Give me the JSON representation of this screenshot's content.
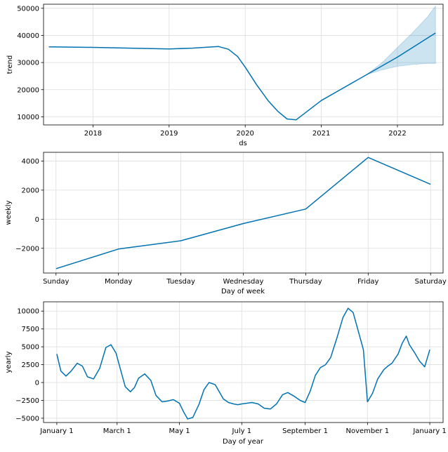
{
  "chart_data": [
    {
      "type": "line",
      "xlabel": "ds",
      "ylabel": "trend",
      "xlim": [
        2017.35,
        2022.6
      ],
      "ylim": [
        7000,
        51500
      ],
      "grid": true,
      "x_ticks": [
        2018,
        2019,
        2020,
        2021,
        2022
      ],
      "x_tick_labels": [
        "2018",
        "2019",
        "2020",
        "2021",
        "2022"
      ],
      "y_ticks": [
        10000,
        20000,
        30000,
        40000,
        50000
      ],
      "y_tick_labels": [
        "10000",
        "20000",
        "30000",
        "40000",
        "50000"
      ],
      "line_color": "#0072b2",
      "band_color": "#0072b2",
      "x": [
        2017.42,
        2018.0,
        2018.5,
        2019.0,
        2019.3,
        2019.65,
        2019.78,
        2019.9,
        2020.0,
        2020.15,
        2020.3,
        2020.43,
        2020.55,
        2020.67,
        2021.0,
        2021.6,
        2022.0,
        2022.5
      ],
      "y": [
        35800,
        35600,
        35300,
        35000,
        35300,
        35900,
        34900,
        32200,
        28300,
        21800,
        16000,
        12000,
        9200,
        8900,
        16000,
        25600,
        32000,
        40900
      ],
      "band": {
        "x": [
          2021.6,
          2021.8,
          2022.0,
          2022.2,
          2022.4,
          2022.5
        ],
        "lower": [
          25600,
          27300,
          28600,
          29300,
          29700,
          29700
        ],
        "upper": [
          25600,
          30000,
          35500,
          41000,
          47000,
          50800
        ]
      }
    },
    {
      "type": "line",
      "xlabel": "Day of week",
      "ylabel": "weekly",
      "categories": [
        "Sunday",
        "Monday",
        "Tuesday",
        "Wednesday",
        "Thursday",
        "Friday",
        "Saturday"
      ],
      "values": [
        -3400,
        -2050,
        -1480,
        -300,
        700,
        4250,
        2400
      ],
      "ylim": [
        -3700,
        4600
      ],
      "grid": true,
      "y_ticks": [
        -2000,
        0,
        2000,
        4000
      ],
      "y_tick_labels": [
        "−2000",
        "0",
        "2000",
        "4000"
      ],
      "line_color": "#0072b2"
    },
    {
      "type": "line",
      "xlabel": "Day of year",
      "ylabel": "yearly",
      "xlim": [
        -13,
        378
      ],
      "ylim": [
        -5600,
        11300
      ],
      "grid": true,
      "x_ticks": [
        0,
        59,
        120,
        181,
        243,
        304,
        365
      ],
      "x_tick_labels": [
        "January 1",
        "March 1",
        "May 1",
        "July 1",
        "September 1",
        "November 1",
        "January 1"
      ],
      "y_ticks": [
        -5000,
        -2500,
        0,
        2500,
        5000,
        7500,
        10000
      ],
      "y_tick_labels": [
        "−5000",
        "−2500",
        "0",
        "2500",
        "5000",
        "7500",
        "10000"
      ],
      "line_color": "#0072b2",
      "x": [
        0,
        4,
        9,
        14,
        20,
        25,
        30,
        36,
        42,
        48,
        53,
        58,
        62,
        67,
        72,
        76,
        80,
        86,
        92,
        97,
        103,
        108,
        114,
        120,
        124,
        128,
        133,
        139,
        144,
        149,
        155,
        163,
        168,
        173,
        177,
        181,
        186,
        191,
        197,
        203,
        209,
        215,
        221,
        226,
        232,
        238,
        243,
        248,
        253,
        258,
        263,
        268,
        274,
        280,
        285,
        290,
        295,
        300,
        304,
        309,
        314,
        320,
        324,
        328,
        334,
        338,
        342,
        345,
        350,
        355,
        360,
        365
      ],
      "y": [
        4000,
        1600,
        900,
        1600,
        2700,
        2300,
        800,
        500,
        2000,
        4900,
        5300,
        4100,
        2000,
        -600,
        -1300,
        -700,
        600,
        1200,
        300,
        -1800,
        -2700,
        -2600,
        -2400,
        -2900,
        -4100,
        -5100,
        -4900,
        -3100,
        -1000,
        0,
        -300,
        -2300,
        -2800,
        -3000,
        -3100,
        -3000,
        -2900,
        -2800,
        -3000,
        -3600,
        -3700,
        -3000,
        -1700,
        -1400,
        -1900,
        -2500,
        -2800,
        -1200,
        1000,
        2100,
        2500,
        3500,
        6200,
        9100,
        10400,
        9800,
        7200,
        4600,
        -2700,
        -1500,
        500,
        1800,
        2300,
        2700,
        4000,
        5500,
        6500,
        5300,
        4200,
        3000,
        2200,
        4600
      ]
    }
  ]
}
